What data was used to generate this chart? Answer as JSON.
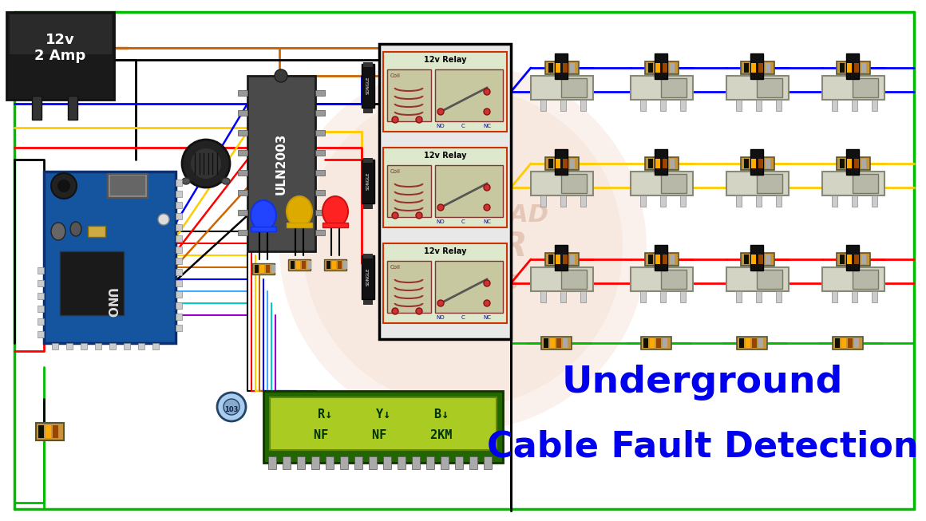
{
  "title_line1": "Underground",
  "title_line2": "Cable Fault Detection",
  "bg_color": "#ffffff",
  "title_color": "#0000ee",
  "title_fontsize": 34,
  "fig_width": 11.6,
  "fig_height": 6.53,
  "wire_colors": {
    "red": "#ff0000",
    "blue": "#0000ff",
    "green": "#00bb00",
    "yellow": "#ffcc00",
    "black": "#000000",
    "orange": "#cc6600",
    "purple": "#9900cc",
    "cyan": "#00cccc",
    "light_blue": "#44aaff",
    "brown": "#884400",
    "dark_green": "#005500"
  },
  "lcd_content_top": "R↓      Y↓      B↓",
  "lcd_content_bot": "NF      NF      2KM",
  "relay_label": "12v Relay",
  "power_label": "12v\n2 Amp",
  "ic_label": "ULN2003",
  "watermark_color": "#d4a890"
}
